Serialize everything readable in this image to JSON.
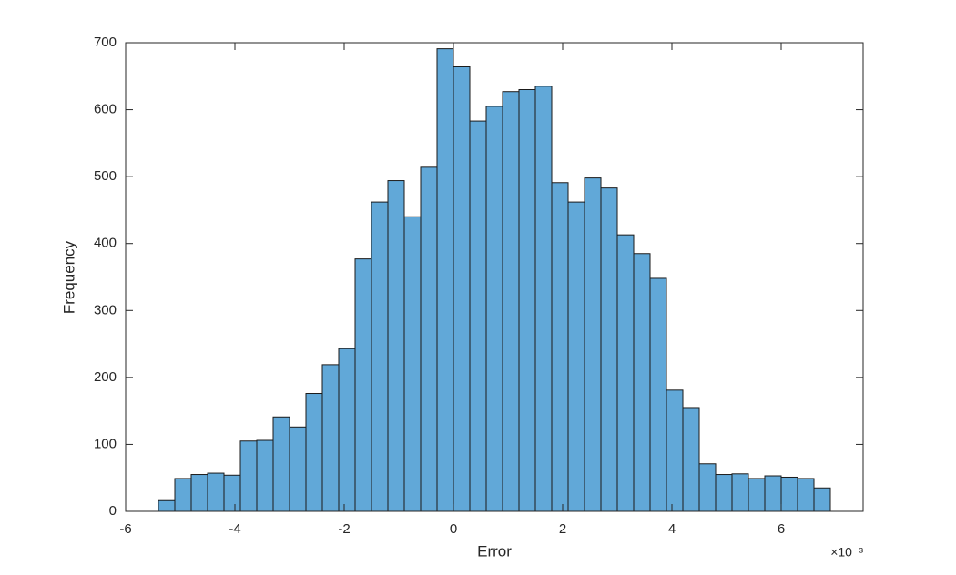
{
  "chart_data": {
    "type": "histogram",
    "x_label": "Error",
    "y_label": "Frequency",
    "x_multiplier_label": "×10⁻³",
    "bins": [
      -5.4,
      -5.1,
      -4.8,
      -4.5,
      -4.2,
      -3.9,
      -3.6,
      -3.3,
      -3.0,
      -2.7,
      -2.4,
      -2.1,
      -1.8,
      -1.5,
      -1.2,
      -0.9,
      -0.6,
      -0.3,
      0,
      0.3,
      0.6,
      0.9,
      1.2,
      1.5,
      1.8,
      2.1,
      2.4,
      2.7,
      3.0,
      3.3,
      3.6,
      3.9,
      4.2,
      4.5,
      4.8,
      5.1,
      5.4,
      5.7,
      6.0,
      6.3,
      6.6,
      6.9
    ],
    "values": [
      16,
      49,
      55,
      57,
      54,
      105,
      106,
      141,
      126,
      176,
      219,
      243,
      377,
      462,
      494,
      440,
      514,
      691,
      664,
      583,
      605,
      627,
      630,
      635,
      491,
      462,
      498,
      483,
      413,
      385,
      348,
      181,
      155,
      71,
      55,
      56,
      49,
      53,
      51,
      49,
      35
    ],
    "color": "#61a8d8",
    "edge_color": "#1a1a1a",
    "xlim": [
      -6,
      7.5
    ],
    "ylim": [
      0,
      700
    ],
    "xticks": [
      -6,
      -4,
      -2,
      0,
      2,
      4,
      6
    ],
    "yticks": [
      0,
      100,
      200,
      300,
      400,
      500,
      600,
      700
    ]
  }
}
